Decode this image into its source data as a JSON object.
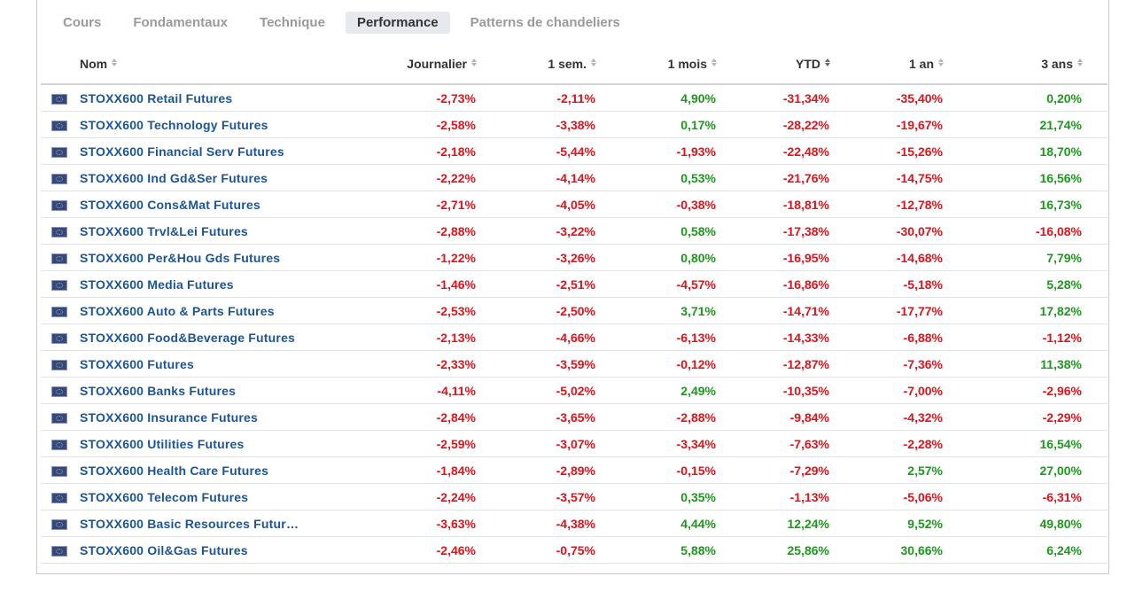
{
  "tabs": [
    {
      "label": "Cours",
      "active": false
    },
    {
      "label": "Fondamentaux",
      "active": false
    },
    {
      "label": "Technique",
      "active": false
    },
    {
      "label": "Performance",
      "active": true
    },
    {
      "label": "Patterns de chandeliers",
      "active": false
    }
  ],
  "table": {
    "headers": [
      "Nom",
      "Journalier",
      "1 sem.",
      "1 mois",
      "YTD",
      "1 an",
      "3 ans"
    ],
    "sorted_column": "YTD",
    "colors": {
      "negative": "#e0131b",
      "positive": "#1a9a1a",
      "link": "#1a5599"
    },
    "row_icon": "eu-flag-icon",
    "rows": [
      {
        "name": "STOXX600 Retail Futures",
        "values": [
          "-2,73%",
          "-2,11%",
          "4,90%",
          "-31,34%",
          "-35,40%",
          "0,20%"
        ]
      },
      {
        "name": "STOXX600 Technology Futures",
        "values": [
          "-2,58%",
          "-3,38%",
          "0,17%",
          "-28,22%",
          "-19,67%",
          "21,74%"
        ]
      },
      {
        "name": "STOXX600 Financial Serv Futures",
        "values": [
          "-2,18%",
          "-5,44%",
          "-1,93%",
          "-22,48%",
          "-15,26%",
          "18,70%"
        ]
      },
      {
        "name": "STOXX600 Ind Gd&Ser Futures",
        "values": [
          "-2,22%",
          "-4,14%",
          "0,53%",
          "-21,76%",
          "-14,75%",
          "16,56%"
        ]
      },
      {
        "name": "STOXX600 Cons&Mat Futures",
        "values": [
          "-2,71%",
          "-4,05%",
          "-0,38%",
          "-18,81%",
          "-12,78%",
          "16,73%"
        ]
      },
      {
        "name": "STOXX600 Trvl&Lei Futures",
        "values": [
          "-2,88%",
          "-3,22%",
          "0,58%",
          "-17,38%",
          "-30,07%",
          "-16,08%"
        ]
      },
      {
        "name": "STOXX600 Per&Hou Gds Futures",
        "values": [
          "-1,22%",
          "-3,26%",
          "0,80%",
          "-16,95%",
          "-14,68%",
          "7,79%"
        ]
      },
      {
        "name": "STOXX600 Media Futures",
        "values": [
          "-1,46%",
          "-2,51%",
          "-4,57%",
          "-16,86%",
          "-5,18%",
          "5,28%"
        ]
      },
      {
        "name": "STOXX600 Auto & Parts Futures",
        "values": [
          "-2,53%",
          "-2,50%",
          "3,71%",
          "-14,71%",
          "-17,77%",
          "17,82%"
        ]
      },
      {
        "name": "STOXX600 Food&Beverage Futures",
        "values": [
          "-2,13%",
          "-4,66%",
          "-6,13%",
          "-14,33%",
          "-6,88%",
          "-1,12%"
        ]
      },
      {
        "name": "STOXX600 Futures",
        "values": [
          "-2,33%",
          "-3,59%",
          "-0,12%",
          "-12,87%",
          "-7,36%",
          "11,38%"
        ]
      },
      {
        "name": "STOXX600 Banks Futures",
        "values": [
          "-4,11%",
          "-5,02%",
          "2,49%",
          "-10,35%",
          "-7,00%",
          "-2,96%"
        ]
      },
      {
        "name": "STOXX600 Insurance Futures",
        "values": [
          "-2,84%",
          "-3,65%",
          "-2,88%",
          "-9,84%",
          "-4,32%",
          "-2,29%"
        ]
      },
      {
        "name": "STOXX600 Utilities Futures",
        "values": [
          "-2,59%",
          "-3,07%",
          "-3,34%",
          "-7,63%",
          "-2,28%",
          "16,54%"
        ]
      },
      {
        "name": "STOXX600 Health Care Futures",
        "values": [
          "-1,84%",
          "-2,89%",
          "-0,15%",
          "-7,29%",
          "2,57%",
          "27,00%"
        ]
      },
      {
        "name": "STOXX600 Telecom Futures",
        "values": [
          "-2,24%",
          "-3,57%",
          "0,35%",
          "-1,13%",
          "-5,06%",
          "-6,31%"
        ]
      },
      {
        "name": "STOXX600 Basic Resources Futur…",
        "values": [
          "-3,63%",
          "-4,38%",
          "4,44%",
          "12,24%",
          "9,52%",
          "49,80%"
        ]
      },
      {
        "name": "STOXX600 Oil&Gas Futures",
        "values": [
          "-2,46%",
          "-0,75%",
          "5,88%",
          "25,86%",
          "30,66%",
          "6,24%"
        ]
      }
    ]
  }
}
